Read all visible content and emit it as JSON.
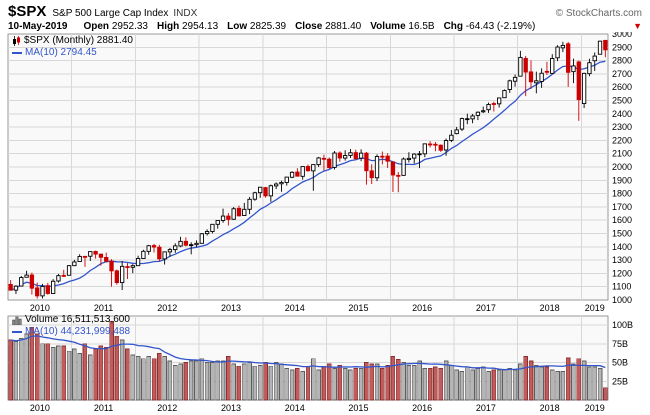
{
  "colors": {
    "up": "#000000",
    "up_fill": "#ffffff",
    "down": "#cc0000",
    "ma": "#3355cc",
    "vol_up": "#b5b5b5",
    "vol_up_edge": "#5e5e5e",
    "vol_down": "#c25b5b",
    "vol_down_edge": "#8a3030",
    "grid": "#d8d8d8",
    "frame": "#999999",
    "plot_bg": "#f9f9f9",
    "copyright_gray": "#666666"
  },
  "header": {
    "symbol": "$SPX",
    "name": "S&P 500 Large Cap Index",
    "exchange": "INDX",
    "copyright": "© StockCharts.com",
    "date": "10-May-2019",
    "fields": [
      {
        "label": "Open",
        "value": "2952.33"
      },
      {
        "label": "High",
        "value": "2954.13"
      },
      {
        "label": "Low",
        "value": "2825.39"
      },
      {
        "label": "Close",
        "value": "2881.40"
      },
      {
        "label": "Volume",
        "value": "16.5B"
      },
      {
        "label": "Chg",
        "value": "-64.43 (-2.19%)"
      }
    ],
    "down_arrow": "▼"
  },
  "price_legend": {
    "line1": "$SPX (Monthly) 2881.40",
    "line2": "MA(10) 2794.45"
  },
  "volume_legend": {
    "line1": "Volume 16,511,513,600",
    "line2": "MA(10) 44,231,999,488"
  },
  "chart_data": [
    {
      "type": "candlestick",
      "title": "$SPX S&P 500 Large Cap Index (Monthly)",
      "interval": "monthly",
      "start": "2010-01",
      "end": "2019-05",
      "ylim": [
        1000,
        3000
      ],
      "ytick_step": 100,
      "years": [
        2010,
        2011,
        2012,
        2013,
        2014,
        2015,
        2016,
        2017,
        2018,
        2019
      ],
      "ma_period": 10,
      "columns": [
        "open",
        "high",
        "low",
        "close"
      ],
      "candles": [
        [
          1117,
          1150,
          1072,
          1074
        ],
        [
          1074,
          1112,
          1045,
          1104
        ],
        [
          1105,
          1181,
          1105,
          1169
        ],
        [
          1171,
          1220,
          1170,
          1187
        ],
        [
          1188,
          1206,
          1041,
          1089
        ],
        [
          1091,
          1131,
          1011,
          1031
        ],
        [
          1031,
          1121,
          1011,
          1102
        ],
        [
          1108,
          1129,
          1040,
          1049
        ],
        [
          1049,
          1157,
          1049,
          1141
        ],
        [
          1143,
          1196,
          1131,
          1183
        ],
        [
          1185,
          1227,
          1173,
          1181
        ],
        [
          1186,
          1263,
          1186,
          1258
        ],
        [
          1258,
          1302,
          1257,
          1286
        ],
        [
          1289,
          1344,
          1289,
          1327
        ],
        [
          1328,
          1332,
          1249,
          1326
        ],
        [
          1329,
          1364,
          1294,
          1364
        ],
        [
          1365,
          1371,
          1311,
          1345
        ],
        [
          1345,
          1346,
          1258,
          1321
        ],
        [
          1320,
          1356,
          1282,
          1292
        ],
        [
          1292,
          1307,
          1101,
          1219
        ],
        [
          1219,
          1230,
          1115,
          1131
        ],
        [
          1131,
          1293,
          1075,
          1253
        ],
        [
          1251,
          1277,
          1158,
          1247
        ],
        [
          1246,
          1269,
          1202,
          1258
        ],
        [
          1258,
          1333,
          1258,
          1312
        ],
        [
          1312,
          1378,
          1312,
          1366
        ],
        [
          1366,
          1414,
          1340,
          1408
        ],
        [
          1409,
          1422,
          1357,
          1398
        ],
        [
          1397,
          1415,
          1292,
          1310
        ],
        [
          1309,
          1363,
          1267,
          1362
        ],
        [
          1362,
          1391,
          1325,
          1379
        ],
        [
          1379,
          1426,
          1354,
          1407
        ],
        [
          1406,
          1475,
          1397,
          1441
        ],
        [
          1441,
          1471,
          1403,
          1412
        ],
        [
          1412,
          1434,
          1343,
          1416
        ],
        [
          1416,
          1448,
          1398,
          1426
        ],
        [
          1426,
          1503,
          1426,
          1498
        ],
        [
          1499,
          1531,
          1485,
          1515
        ],
        [
          1515,
          1571,
          1501,
          1569
        ],
        [
          1569,
          1598,
          1536,
          1598
        ],
        [
          1598,
          1687,
          1581,
          1631
        ],
        [
          1631,
          1654,
          1560,
          1606
        ],
        [
          1607,
          1699,
          1604,
          1686
        ],
        [
          1689,
          1710,
          1627,
          1633
        ],
        [
          1635,
          1730,
          1633,
          1682
        ],
        [
          1682,
          1775,
          1646,
          1757
        ],
        [
          1758,
          1814,
          1746,
          1806
        ],
        [
          1807,
          1849,
          1768,
          1848
        ],
        [
          1845,
          1851,
          1770,
          1783
        ],
        [
          1783,
          1868,
          1738,
          1859
        ],
        [
          1858,
          1884,
          1834,
          1872
        ],
        [
          1874,
          1897,
          1814,
          1884
        ],
        [
          1884,
          1924,
          1860,
          1924
        ],
        [
          1923,
          1968,
          1916,
          1960
        ],
        [
          1962,
          1991,
          1930,
          1931
        ],
        [
          1930,
          2005,
          1905,
          2003
        ],
        [
          2004,
          2019,
          1964,
          1972
        ],
        [
          1971,
          2018,
          1821,
          2018
        ],
        [
          2018,
          2076,
          2001,
          2068
        ],
        [
          2065,
          2093,
          1972,
          2059
        ],
        [
          2059,
          2072,
          1988,
          1995
        ],
        [
          1997,
          2120,
          1981,
          2105
        ],
        [
          2105,
          2118,
          2040,
          2068
        ],
        [
          2067,
          2126,
          2048,
          2086
        ],
        [
          2087,
          2135,
          2068,
          2107
        ],
        [
          2108,
          2130,
          2056,
          2063
        ],
        [
          2067,
          2133,
          2044,
          2104
        ],
        [
          2104,
          2113,
          1867,
          1972
        ],
        [
          1971,
          2021,
          1872,
          1920
        ],
        [
          1919,
          2095,
          1894,
          2079
        ],
        [
          2081,
          2116,
          2019,
          2080
        ],
        [
          2082,
          2104,
          1993,
          2044
        ],
        [
          2038,
          2038,
          1812,
          1940
        ],
        [
          1937,
          1963,
          1810,
          1932
        ],
        [
          1937,
          2072,
          1937,
          2060
        ],
        [
          2056,
          2111,
          2034,
          2065
        ],
        [
          2067,
          2103,
          2026,
          2097
        ],
        [
          2093,
          2120,
          1992,
          2099
        ],
        [
          2099,
          2177,
          2074,
          2174
        ],
        [
          2173,
          2194,
          2147,
          2171
        ],
        [
          2171,
          2188,
          2119,
          2168
        ],
        [
          2164,
          2170,
          2114,
          2126
        ],
        [
          2128,
          2214,
          2084,
          2199
        ],
        [
          2200,
          2278,
          2187,
          2239
        ],
        [
          2251,
          2301,
          2245,
          2279
        ],
        [
          2285,
          2371,
          2271,
          2364
        ],
        [
          2362,
          2401,
          2322,
          2363
        ],
        [
          2362,
          2399,
          2329,
          2384
        ],
        [
          2388,
          2418,
          2353,
          2412
        ],
        [
          2415,
          2454,
          2406,
          2423
        ],
        [
          2431,
          2484,
          2407,
          2470
        ],
        [
          2477,
          2491,
          2417,
          2472
        ],
        [
          2475,
          2519,
          2447,
          2519
        ],
        [
          2521,
          2583,
          2520,
          2575
        ],
        [
          2583,
          2657,
          2557,
          2648
        ],
        [
          2645,
          2695,
          2605,
          2674
        ],
        [
          2683,
          2873,
          2682,
          2824
        ],
        [
          2816,
          2835,
          2533,
          2714
        ],
        [
          2715,
          2802,
          2586,
          2641
        ],
        [
          2633,
          2717,
          2554,
          2648
        ],
        [
          2643,
          2742,
          2595,
          2705
        ],
        [
          2719,
          2791,
          2692,
          2718
        ],
        [
          2704,
          2848,
          2699,
          2816
        ],
        [
          2821,
          2916,
          2796,
          2902
        ],
        [
          2896,
          2941,
          2864,
          2914
        ],
        [
          2926,
          2940,
          2603,
          2712
        ],
        [
          2717,
          2815,
          2631,
          2760
        ],
        [
          2790,
          2800,
          2347,
          2507
        ],
        [
          2477,
          2709,
          2444,
          2704
        ],
        [
          2702,
          2814,
          2682,
          2784
        ],
        [
          2799,
          2861,
          2722,
          2834
        ],
        [
          2848,
          2949,
          2848,
          2946
        ],
        [
          2952,
          2954,
          2825,
          2881
        ]
      ]
    },
    {
      "type": "bar",
      "title": "Volume (billions of shares, monthly)",
      "unit": "B",
      "ymax": 112,
      "yticks": [
        100,
        75,
        50,
        25
      ],
      "ma_period": 10,
      "values": [
        80,
        78,
        82,
        88,
        97,
        88,
        75,
        75,
        70,
        72,
        72,
        65,
        68,
        62,
        75,
        60,
        68,
        72,
        70,
        105,
        85,
        80,
        68,
        60,
        58,
        55,
        58,
        55,
        62,
        58,
        52,
        46,
        48,
        50,
        52,
        52,
        55,
        50,
        50,
        52,
        52,
        58,
        48,
        45,
        48,
        50,
        45,
        46,
        50,
        45,
        50,
        48,
        42,
        40,
        42,
        38,
        45,
        55,
        40,
        44,
        48,
        42,
        46,
        42,
        40,
        42,
        42,
        50,
        48,
        48,
        42,
        46,
        58,
        54,
        50,
        46,
        46,
        52,
        42,
        42,
        44,
        42,
        52,
        46,
        40,
        38,
        44,
        40,
        42,
        44,
        38,
        40,
        40,
        40,
        42,
        40,
        48,
        58,
        52,
        46,
        44,
        44,
        40,
        38,
        38,
        56,
        48,
        55,
        52,
        44,
        44,
        42,
        16.5
      ]
    }
  ]
}
